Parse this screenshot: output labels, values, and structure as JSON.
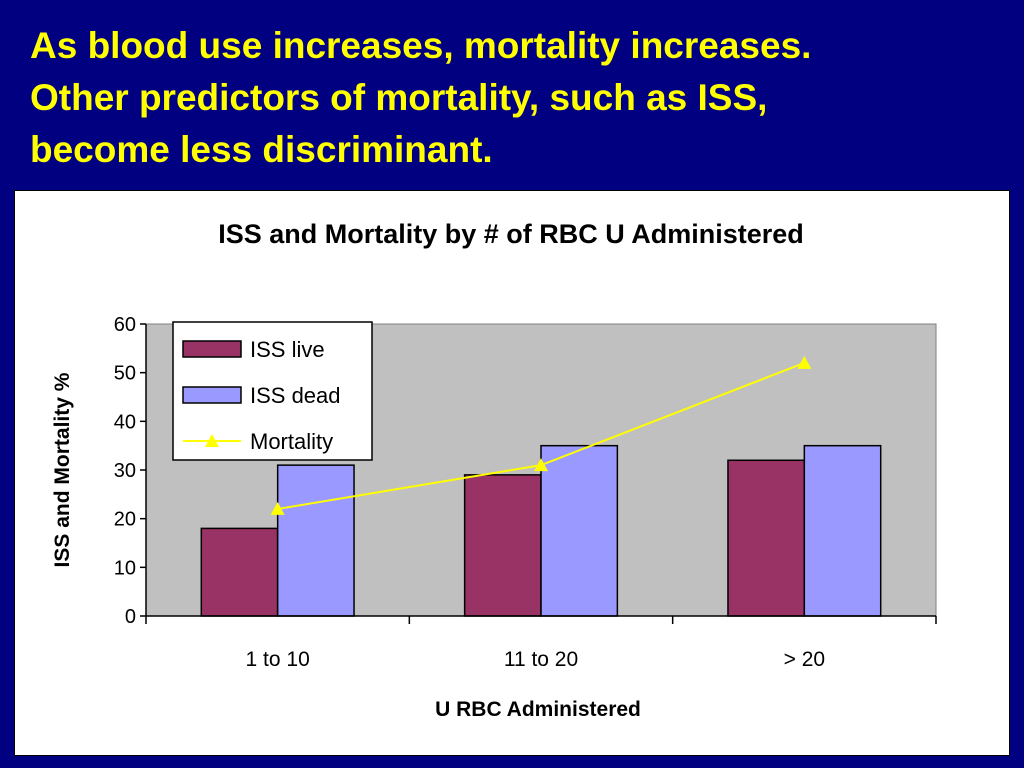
{
  "slide": {
    "heading_lines": [
      "As blood use increases, mortality increases.",
      "Other predictors of mortality, such as ISS,",
      "become less discriminant."
    ]
  },
  "colors": {
    "background": "#000080",
    "heading": "#FFFF00",
    "plot_area": "#C0C0C0",
    "iss_live": "#993366",
    "iss_dead": "#9999FF",
    "mortality": "#FFFF00"
  },
  "chart_data": {
    "type": "bar",
    "title": "ISS and Mortality by # of RBC U Administered",
    "xlabel": "U RBC Administered",
    "ylabel": "ISS and Mortality %",
    "categories": [
      "1 to 10",
      "11 to 20",
      "> 20"
    ],
    "ylim": [
      0,
      60
    ],
    "yticks": [
      0,
      10,
      20,
      30,
      40,
      50,
      60
    ],
    "grid": false,
    "legend_position": "top-left",
    "series": [
      {
        "name": "ISS live",
        "type": "bar",
        "color": "#993366",
        "values": [
          18,
          29,
          32
        ]
      },
      {
        "name": "ISS dead",
        "type": "bar",
        "color": "#9999FF",
        "values": [
          31,
          35,
          35
        ]
      },
      {
        "name": "Mortality",
        "type": "line",
        "marker": "triangle",
        "color": "#FFFF00",
        "values": [
          22,
          31,
          52
        ]
      }
    ]
  }
}
